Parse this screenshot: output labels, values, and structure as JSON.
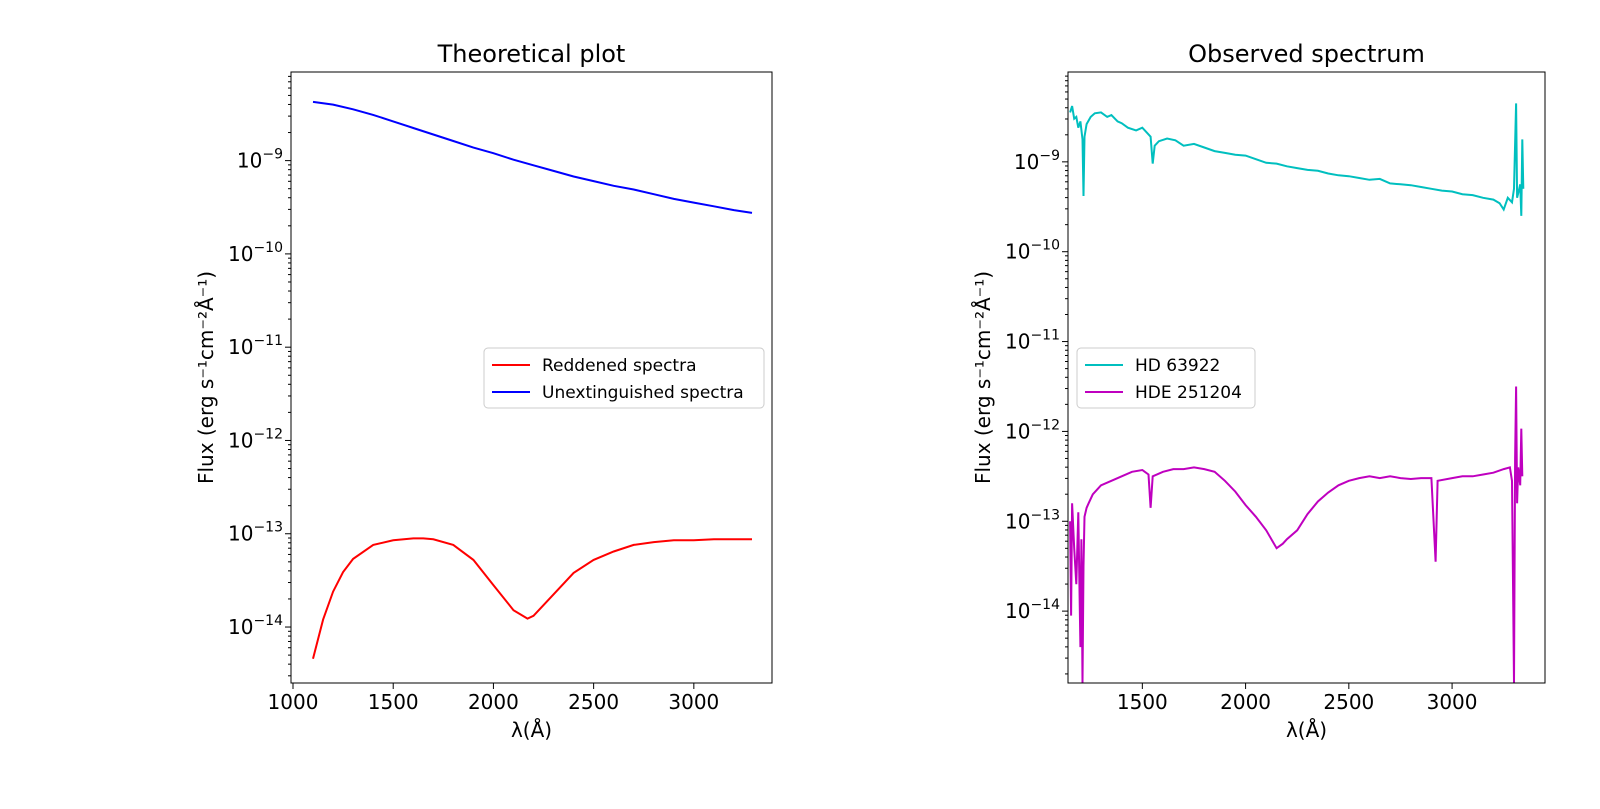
{
  "chart_data": [
    {
      "type": "line",
      "title": "Theoretical plot",
      "xlabel": "λ(Å)",
      "ylabel": "Flux (erg  s⁻¹cm⁻²Å⁻¹)",
      "yscale": "log",
      "xlim": [
        990,
        3390
      ],
      "ylim_log10": [
        -14.6,
        -8.05
      ],
      "xticks": [
        1000,
        1500,
        2000,
        2500,
        3000
      ],
      "yticks_exp": [
        -9,
        -10,
        -11,
        -12,
        -13,
        -14
      ],
      "ytick_base": "10",
      "legend": "center-right",
      "series": [
        {
          "name": "Reddened spectra",
          "color": "#ff0000",
          "points": [
            [
              1100,
              -14.34
            ],
            [
              1150,
              -13.92
            ],
            [
              1200,
              -13.62
            ],
            [
              1250,
              -13.41
            ],
            [
              1300,
              -13.27
            ],
            [
              1400,
              -13.12
            ],
            [
              1500,
              -13.07
            ],
            [
              1600,
              -13.05
            ],
            [
              1650,
              -13.05
            ],
            [
              1700,
              -13.06
            ],
            [
              1800,
              -13.12
            ],
            [
              1900,
              -13.28
            ],
            [
              2000,
              -13.55
            ],
            [
              2100,
              -13.82
            ],
            [
              2170,
              -13.91
            ],
            [
              2200,
              -13.88
            ],
            [
              2300,
              -13.65
            ],
            [
              2400,
              -13.42
            ],
            [
              2500,
              -13.28
            ],
            [
              2600,
              -13.19
            ],
            [
              2700,
              -13.12
            ],
            [
              2800,
              -13.09
            ],
            [
              2900,
              -13.07
            ],
            [
              3000,
              -13.07
            ],
            [
              3100,
              -13.06
            ],
            [
              3200,
              -13.06
            ],
            [
              3290,
              -13.06
            ]
          ]
        },
        {
          "name": "Unextinguished spectra",
          "color": "#0000ff",
          "points": [
            [
              1100,
              -8.37
            ],
            [
              1200,
              -8.4
            ],
            [
              1300,
              -8.45
            ],
            [
              1400,
              -8.51
            ],
            [
              1500,
              -8.58
            ],
            [
              1600,
              -8.65
            ],
            [
              1700,
              -8.72
            ],
            [
              1800,
              -8.79
            ],
            [
              1900,
              -8.86
            ],
            [
              2000,
              -8.92
            ],
            [
              2100,
              -8.99
            ],
            [
              2200,
              -9.05
            ],
            [
              2300,
              -9.11
            ],
            [
              2400,
              -9.17
            ],
            [
              2500,
              -9.22
            ],
            [
              2600,
              -9.27
            ],
            [
              2700,
              -9.31
            ],
            [
              2800,
              -9.36
            ],
            [
              2900,
              -9.41
            ],
            [
              3000,
              -9.45
            ],
            [
              3100,
              -9.49
            ],
            [
              3200,
              -9.53
            ],
            [
              3290,
              -9.56
            ]
          ]
        }
      ]
    },
    {
      "type": "line",
      "title": "Observed spectrum",
      "xlabel": "λ(Å)",
      "ylabel": "Flux (erg s⁻¹cm⁻²Å⁻¹)",
      "yscale": "log",
      "xlim": [
        1140,
        3450
      ],
      "ylim_log10": [
        -14.8,
        -8.0
      ],
      "xticks": [
        1500,
        2000,
        2500,
        3000
      ],
      "yticks_exp": [
        -9,
        -10,
        -11,
        -12,
        -13,
        -14
      ],
      "ytick_base": "10",
      "legend": "center-left",
      "series": [
        {
          "name": "HD 63922",
          "color": "#00bfbf",
          "points": [
            [
              1150,
              -8.45
            ],
            [
              1160,
              -8.38
            ],
            [
              1170,
              -8.52
            ],
            [
              1180,
              -8.5
            ],
            [
              1190,
              -8.62
            ],
            [
              1200,
              -8.55
            ],
            [
              1210,
              -8.75
            ],
            [
              1215,
              -9.38
            ],
            [
              1220,
              -8.72
            ],
            [
              1230,
              -8.58
            ],
            [
              1250,
              -8.5
            ],
            [
              1270,
              -8.46
            ],
            [
              1300,
              -8.45
            ],
            [
              1330,
              -8.5
            ],
            [
              1350,
              -8.48
            ],
            [
              1380,
              -8.55
            ],
            [
              1400,
              -8.57
            ],
            [
              1430,
              -8.62
            ],
            [
              1470,
              -8.65
            ],
            [
              1500,
              -8.62
            ],
            [
              1540,
              -8.72
            ],
            [
              1550,
              -9.02
            ],
            [
              1560,
              -8.82
            ],
            [
              1580,
              -8.77
            ],
            [
              1620,
              -8.74
            ],
            [
              1660,
              -8.76
            ],
            [
              1700,
              -8.82
            ],
            [
              1750,
              -8.8
            ],
            [
              1800,
              -8.84
            ],
            [
              1850,
              -8.88
            ],
            [
              1900,
              -8.9
            ],
            [
              1950,
              -8.92
            ],
            [
              2000,
              -8.93
            ],
            [
              2050,
              -8.97
            ],
            [
              2100,
              -9.01
            ],
            [
              2150,
              -9.02
            ],
            [
              2200,
              -9.05
            ],
            [
              2250,
              -9.07
            ],
            [
              2300,
              -9.09
            ],
            [
              2350,
              -9.1
            ],
            [
              2400,
              -9.13
            ],
            [
              2450,
              -9.15
            ],
            [
              2500,
              -9.16
            ],
            [
              2550,
              -9.18
            ],
            [
              2600,
              -9.2
            ],
            [
              2650,
              -9.19
            ],
            [
              2700,
              -9.24
            ],
            [
              2750,
              -9.25
            ],
            [
              2800,
              -9.26
            ],
            [
              2850,
              -9.28
            ],
            [
              2900,
              -9.3
            ],
            [
              2950,
              -9.32
            ],
            [
              3000,
              -9.33
            ],
            [
              3050,
              -9.36
            ],
            [
              3100,
              -9.37
            ],
            [
              3150,
              -9.4
            ],
            [
              3200,
              -9.42
            ],
            [
              3230,
              -9.46
            ],
            [
              3250,
              -9.53
            ],
            [
              3270,
              -9.4
            ],
            [
              3290,
              -9.45
            ],
            [
              3300,
              -9.3
            ],
            [
              3310,
              -8.35
            ],
            [
              3315,
              -9.4
            ],
            [
              3320,
              -9.35
            ],
            [
              3330,
              -9.25
            ],
            [
              3335,
              -9.6
            ],
            [
              3340,
              -8.75
            ],
            [
              3345,
              -9.3
            ]
          ]
        },
        {
          "name": "HDE 251204",
          "color": "#bf00bf",
          "points": [
            [
              1150,
              -13.0
            ],
            [
              1155,
              -14.05
            ],
            [
              1160,
              -12.8
            ],
            [
              1170,
              -13.3
            ],
            [
              1180,
              -13.7
            ],
            [
              1190,
              -12.9
            ],
            [
              1200,
              -14.4
            ],
            [
              1205,
              -13.2
            ],
            [
              1210,
              -14.8
            ],
            [
              1215,
              -13.5
            ],
            [
              1220,
              -12.95
            ],
            [
              1230,
              -12.85
            ],
            [
              1240,
              -12.8
            ],
            [
              1260,
              -12.7
            ],
            [
              1300,
              -12.6
            ],
            [
              1350,
              -12.55
            ],
            [
              1400,
              -12.5
            ],
            [
              1450,
              -12.45
            ],
            [
              1500,
              -12.43
            ],
            [
              1530,
              -12.48
            ],
            [
              1540,
              -12.85
            ],
            [
              1550,
              -12.5
            ],
            [
              1600,
              -12.45
            ],
            [
              1650,
              -12.42
            ],
            [
              1700,
              -12.42
            ],
            [
              1750,
              -12.4
            ],
            [
              1800,
              -12.42
            ],
            [
              1850,
              -12.45
            ],
            [
              1900,
              -12.55
            ],
            [
              1950,
              -12.67
            ],
            [
              2000,
              -12.82
            ],
            [
              2050,
              -12.95
            ],
            [
              2100,
              -13.1
            ],
            [
              2150,
              -13.3
            ],
            [
              2180,
              -13.25
            ],
            [
              2200,
              -13.2
            ],
            [
              2250,
              -13.1
            ],
            [
              2300,
              -12.92
            ],
            [
              2350,
              -12.78
            ],
            [
              2400,
              -12.68
            ],
            [
              2450,
              -12.6
            ],
            [
              2500,
              -12.55
            ],
            [
              2550,
              -12.52
            ],
            [
              2600,
              -12.5
            ],
            [
              2650,
              -12.52
            ],
            [
              2700,
              -12.5
            ],
            [
              2750,
              -12.52
            ],
            [
              2800,
              -12.53
            ],
            [
              2850,
              -12.52
            ],
            [
              2900,
              -12.52
            ],
            [
              2920,
              -13.45
            ],
            [
              2930,
              -12.55
            ],
            [
              3000,
              -12.52
            ],
            [
              3050,
              -12.5
            ],
            [
              3100,
              -12.5
            ],
            [
              3150,
              -12.48
            ],
            [
              3200,
              -12.46
            ],
            [
              3250,
              -12.42
            ],
            [
              3280,
              -12.4
            ],
            [
              3290,
              -12.55
            ],
            [
              3300,
              -14.8
            ],
            [
              3305,
              -12.3
            ],
            [
              3310,
              -11.5
            ],
            [
              3315,
              -12.8
            ],
            [
              3320,
              -12.4
            ],
            [
              3330,
              -12.6
            ],
            [
              3335,
              -11.97
            ],
            [
              3340,
              -12.5
            ]
          ]
        }
      ]
    }
  ]
}
